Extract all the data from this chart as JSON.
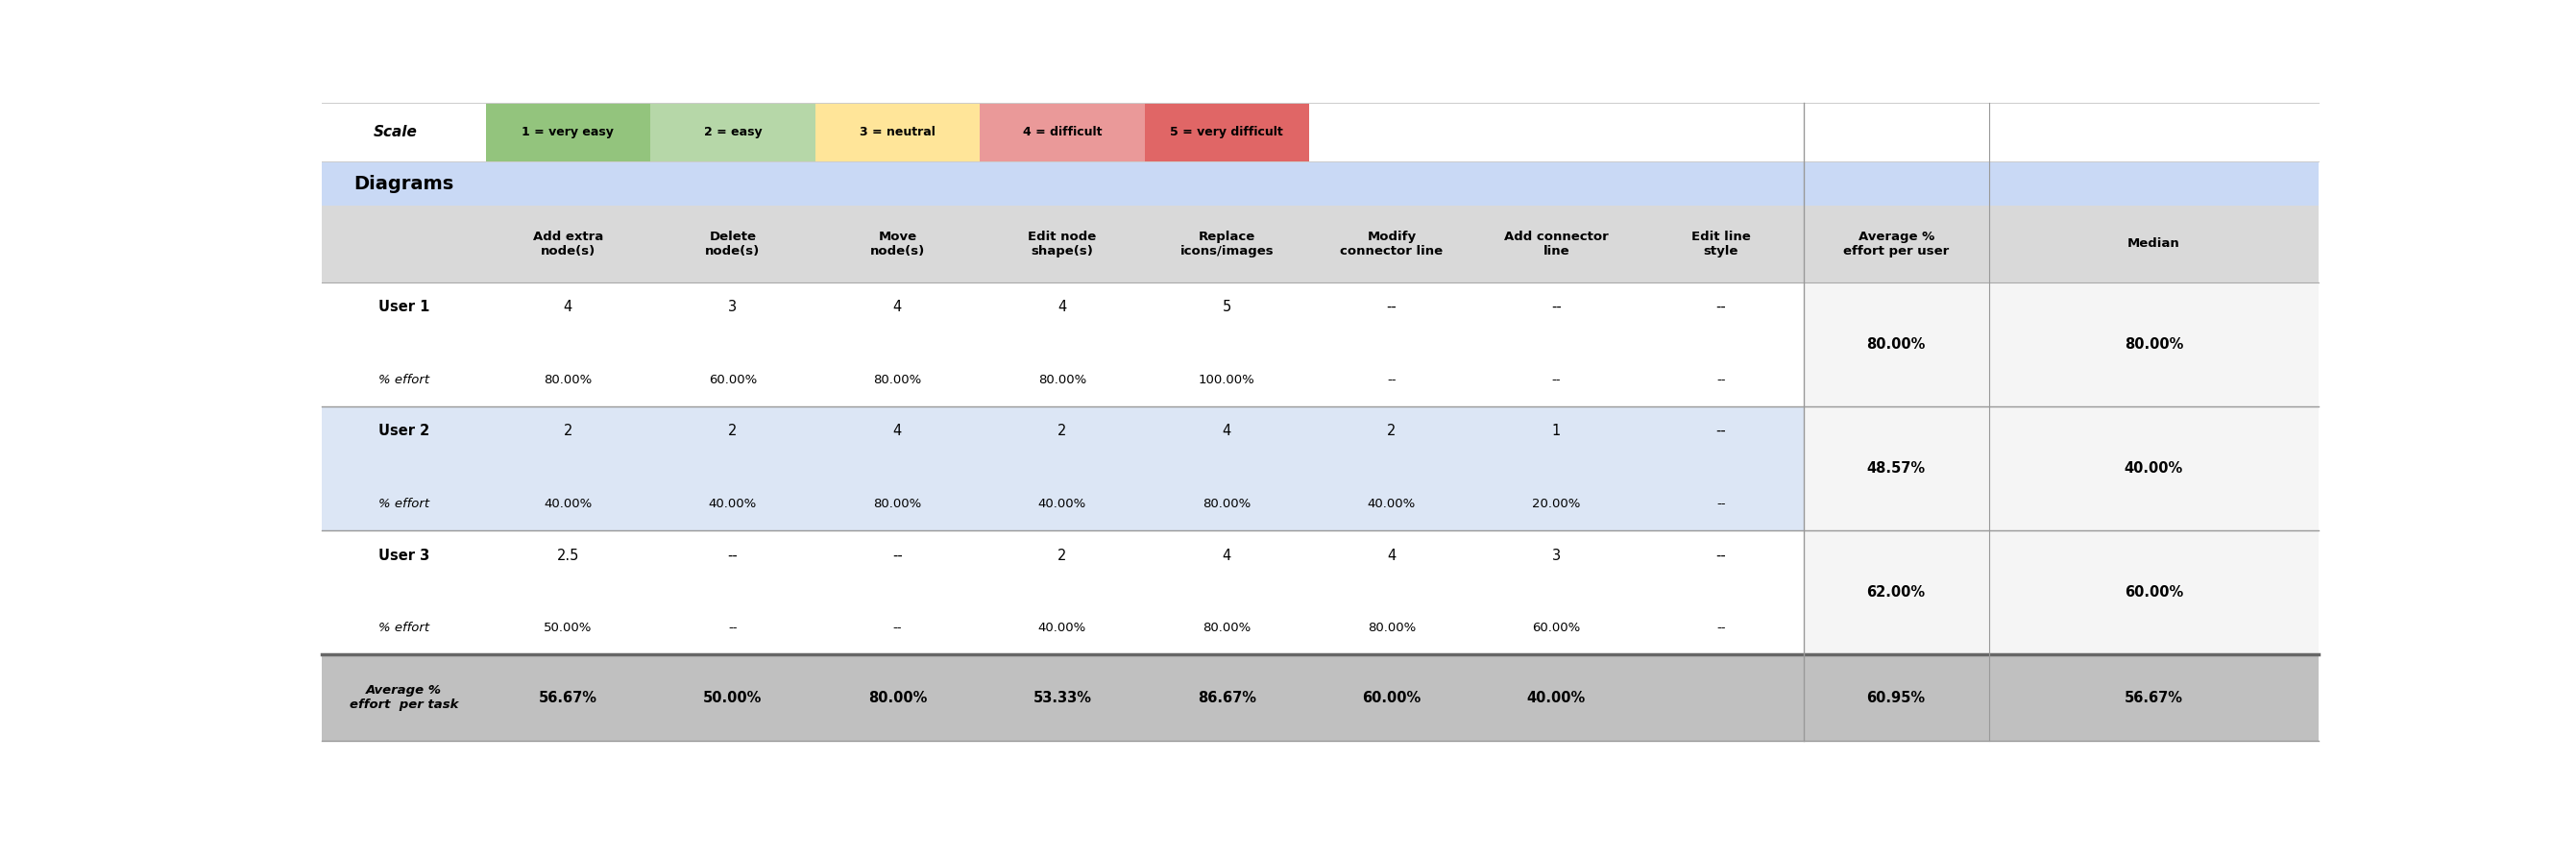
{
  "scale_labels": [
    "1 = very easy",
    "2 = easy",
    "3 = neutral",
    "4 = difficult",
    "5 = very difficult"
  ],
  "scale_colors": [
    "#93c47d",
    "#b6d7a8",
    "#ffe599",
    "#ea9999",
    "#e06666"
  ],
  "diagrams_bg": "#c9d9f5",
  "header_bg": "#d9d9d9",
  "user2_bg": "#dce6f5",
  "white_bg": "#ffffff",
  "footer_bg": "#c0c0c0",
  "avg_median_white": "#f5f5f5",
  "col_headers": [
    "Add extra\nnode(s)",
    "Delete\nnode(s)",
    "Move\nnode(s)",
    "Edit node\nshape(s)",
    "Replace\nicons/images",
    "Modify\nconnector line",
    "Add connector\nline",
    "Edit line\nstyle",
    "Average %\neffort per user",
    "Median"
  ],
  "rows": [
    {
      "label": "User 1",
      "values": [
        "4",
        "3",
        "4",
        "4",
        "5",
        "--",
        "--",
        "--"
      ],
      "avg": "80.00%",
      "median": "80.00%",
      "effort": [
        "80.00%",
        "60.00%",
        "80.00%",
        "80.00%",
        "100.00%",
        "--",
        "--",
        "--"
      ],
      "bg": "#ffffff",
      "label_bold": true
    },
    {
      "label": "User 2",
      "values": [
        "2",
        "2",
        "4",
        "2",
        "4",
        "2",
        "1",
        "--"
      ],
      "avg": "48.57%",
      "median": "40.00%",
      "effort": [
        "40.00%",
        "40.00%",
        "80.00%",
        "40.00%",
        "80.00%",
        "40.00%",
        "20.00%",
        "--"
      ],
      "bg": "#dce6f5",
      "label_bold": true
    },
    {
      "label": "User 3",
      "values": [
        "2.5",
        "--",
        "--",
        "2",
        "4",
        "4",
        "3",
        "--"
      ],
      "avg": "62.00%",
      "median": "60.00%",
      "effort": [
        "50.00%",
        "--",
        "--",
        "40.00%",
        "80.00%",
        "80.00%",
        "60.00%",
        "--"
      ],
      "bg": "#ffffff",
      "label_bold": true
    }
  ],
  "footer": {
    "label": "Average %\neffort  per task",
    "values": [
      "56.67%",
      "50.00%",
      "80.00%",
      "53.33%",
      "86.67%",
      "60.00%",
      "40.00%",
      ""
    ],
    "avg": "60.95%",
    "median": "56.67%"
  },
  "fig_width": 26.82,
  "fig_height": 8.93
}
